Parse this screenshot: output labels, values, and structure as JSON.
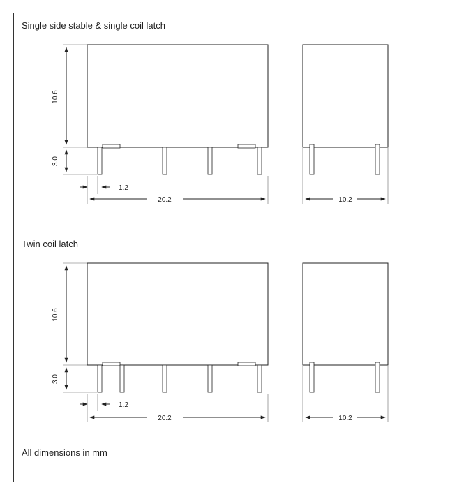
{
  "sections": [
    {
      "title": "Single side stable & single coil latch",
      "dims": {
        "height": "10.6",
        "pin_len": "3.0",
        "pin_offset": "1.2",
        "length": "20.2",
        "width": "10.2"
      }
    },
    {
      "title": "Twin coil latch",
      "dims": {
        "height": "10.6",
        "pin_len": "3.0",
        "pin_offset": "1.2",
        "length": "20.2",
        "width": "10.2"
      }
    }
  ],
  "footer": "All dimensions in mm"
}
